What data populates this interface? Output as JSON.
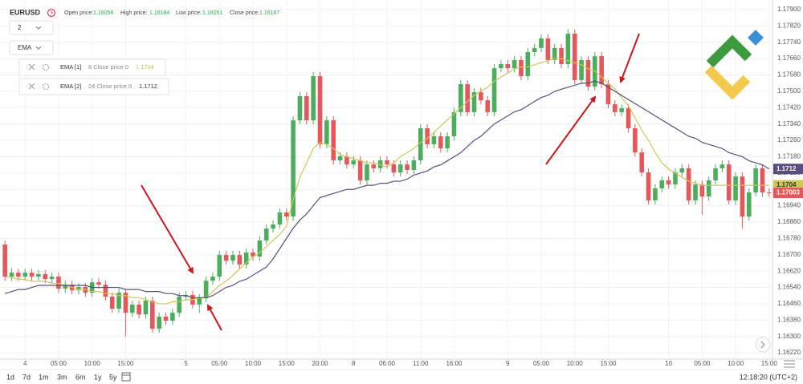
{
  "header": {
    "symbol": "EURUSD",
    "fields": [
      {
        "label": "Open price:",
        "value": 1.16058
      },
      {
        "label": "High price:",
        "value": 1.16184
      },
      {
        "label": "Low price:",
        "value": 1.16051
      },
      {
        "label": "Close price:",
        "value": 1.16167
      }
    ]
  },
  "toolbar": {
    "interval": "2",
    "indicator": "EMA"
  },
  "footer": {
    "ranges": [
      "1d",
      "7d",
      "1m",
      "3m",
      "6m",
      "1y",
      "5y"
    ],
    "clock": "12:18:20 (UTC+2)"
  },
  "chart_data": {
    "type": "candlestick",
    "grid": true,
    "up_color": "#4cae5c",
    "down_color": "#e5575b",
    "ylim": [
      1.16189,
      1.17947
    ],
    "yticks": [
      {
        "value": 1.179,
        "label": "1.17900"
      },
      {
        "value": 1.1782,
        "label": "1.17820"
      },
      {
        "value": 1.1774,
        "label": "1.17740"
      },
      {
        "value": 1.1766,
        "label": "1.17660"
      },
      {
        "value": 1.1758,
        "label": "1.17580"
      },
      {
        "value": 1.175,
        "label": "1.17500"
      },
      {
        "value": 1.1742,
        "label": "1.17420"
      },
      {
        "value": 1.1734,
        "label": "1.17340"
      },
      {
        "value": 1.1726,
        "label": "1.17260"
      },
      {
        "value": 1.1718,
        "label": "1.17180"
      },
      {
        "value": 1.171,
        "label": "1.17100"
      },
      {
        "value": 1.1702,
        "label": "1.17020"
      },
      {
        "value": 1.1694,
        "label": "1.16940"
      },
      {
        "value": 1.1686,
        "label": "1.16860"
      },
      {
        "value": 1.1678,
        "label": "1.16780"
      },
      {
        "value": 1.167,
        "label": "1.16700"
      },
      {
        "value": 1.1662,
        "label": "1.16620"
      },
      {
        "value": 1.1654,
        "label": "1.16540"
      },
      {
        "value": 1.1646,
        "label": "1.16460"
      },
      {
        "value": 1.1638,
        "label": "1.16380"
      },
      {
        "value": 1.163,
        "label": "1.16300"
      },
      {
        "value": 1.1622,
        "label": "1.16220"
      }
    ],
    "categories": [
      null,
      null,
      null,
      "4",
      null,
      null,
      null,
      null,
      "05:00",
      null,
      null,
      null,
      null,
      "10:00",
      null,
      null,
      null,
      null,
      "15:00",
      null,
      null,
      null,
      null,
      null,
      null,
      null,
      null,
      "5",
      null,
      null,
      null,
      null,
      "05:00",
      null,
      null,
      null,
      null,
      "10:00",
      null,
      null,
      null,
      null,
      "15:00",
      null,
      null,
      null,
      null,
      "20:00",
      null,
      null,
      null,
      null,
      "8",
      null,
      null,
      null,
      null,
      "06:00",
      null,
      null,
      null,
      null,
      "11:00",
      null,
      null,
      null,
      null,
      "16:00",
      null,
      null,
      null,
      null,
      null,
      null,
      null,
      "9",
      null,
      null,
      null,
      null,
      "05:00",
      null,
      null,
      null,
      null,
      "10:00",
      null,
      null,
      null,
      null,
      "15:00",
      null,
      null,
      null,
      null,
      null,
      null,
      null,
      null,
      "10",
      null,
      null,
      null,
      null,
      "05:00",
      null,
      null,
      null,
      null,
      "10:00",
      null,
      null,
      null,
      null,
      "15:00"
    ],
    "open": [
      1.1675,
      1.16593,
      1.16612,
      1.16593,
      1.16612,
      1.16593,
      1.16605,
      1.16581,
      1.16593,
      1.16534,
      1.16554,
      1.16526,
      1.16542,
      1.16514,
      1.16565,
      1.16554,
      1.16495,
      1.16436,
      1.16514,
      1.16416,
      1.16456,
      1.16408,
      1.16475,
      1.16338,
      1.16397,
      1.16377,
      1.16416,
      1.16495,
      1.16503,
      1.16456,
      1.16487,
      1.16573,
      1.16593,
      1.16699,
      1.16671,
      1.16699,
      1.16652,
      1.16711,
      1.16691,
      1.1677,
      1.16828,
      1.16848,
      1.16907,
      1.16887,
      1.17358,
      1.17476,
      1.17358,
      1.17574,
      1.17241,
      1.17358,
      1.17162,
      1.17182,
      1.17142,
      1.17162,
      1.17064,
      1.17142,
      1.17123,
      1.17162,
      1.17142,
      1.17103,
      1.17142,
      1.17115,
      1.17162,
      1.17319,
      1.17241,
      1.1728,
      1.17221,
      1.1728,
      1.17398,
      1.17535,
      1.17398,
      1.17496,
      1.17456,
      1.17398,
      1.17613,
      1.17633,
      1.17613,
      1.17653,
      1.17574,
      1.17692,
      1.17712,
      1.17759,
      1.17653,
      1.17712,
      1.17633,
      1.17782,
      1.17555,
      1.17653,
      1.17523,
      1.17672,
      1.17535,
      1.17437,
      1.17398,
      1.17417,
      1.17319,
      1.17201,
      1.17103,
      1.16966,
      1.17025,
      1.17064,
      1.17044,
      1.17103,
      1.17123,
      1.16966,
      1.17044,
      1.16985,
      1.17064,
      1.17123,
      1.17142,
      1.16966,
      1.17083,
      1.16887,
      1.17005,
      1.17123,
      1.17005
    ],
    "high": [
      1.1677,
      1.16632,
      1.16632,
      1.16632,
      1.16632,
      1.16625,
      1.16625,
      1.16613,
      1.16613,
      1.16574,
      1.16574,
      1.16562,
      1.16562,
      1.16585,
      1.16585,
      1.16574,
      1.16515,
      1.16534,
      1.16534,
      1.16476,
      1.16476,
      1.16495,
      1.16495,
      1.16417,
      1.16417,
      1.16436,
      1.16515,
      1.16523,
      1.16523,
      1.16507,
      1.16593,
      1.16613,
      1.16719,
      1.16719,
      1.16719,
      1.16719,
      1.16731,
      1.16731,
      1.1679,
      1.16848,
      1.16868,
      1.16927,
      1.16927,
      1.17378,
      1.17496,
      1.17496,
      1.17594,
      1.17594,
      1.17378,
      1.17378,
      1.17202,
      1.17202,
      1.17182,
      1.17182,
      1.17162,
      1.17162,
      1.17182,
      1.17182,
      1.17162,
      1.17162,
      1.17162,
      1.17182,
      1.17339,
      1.17339,
      1.173,
      1.173,
      1.173,
      1.17418,
      1.17555,
      1.17555,
      1.17516,
      1.17516,
      1.17476,
      1.17633,
      1.17653,
      1.17653,
      1.17673,
      1.17673,
      1.17712,
      1.17732,
      1.17779,
      1.17779,
      1.17732,
      1.17732,
      1.17802,
      1.17802,
      1.17673,
      1.17673,
      1.17692,
      1.17692,
      1.17555,
      1.17457,
      1.17437,
      1.17437,
      1.17339,
      1.17221,
      1.17123,
      1.17045,
      1.17084,
      1.17084,
      1.17123,
      1.17143,
      1.17143,
      1.17064,
      1.17064,
      1.17084,
      1.17143,
      1.17162,
      1.17162,
      1.17103,
      1.17103,
      1.17025,
      1.17143,
      1.17143,
      1.17025
    ],
    "low": [
      1.16573,
      1.16573,
      1.16573,
      1.16573,
      1.16573,
      1.16573,
      1.16561,
      1.16561,
      1.16514,
      1.16514,
      1.16506,
      1.16506,
      1.16494,
      1.16494,
      1.16534,
      1.16475,
      1.16416,
      1.16416,
      1.163,
      1.16396,
      1.16388,
      1.16388,
      1.16318,
      1.16318,
      1.16357,
      1.16357,
      1.16396,
      1.16475,
      1.16436,
      1.16416,
      1.16467,
      1.16553,
      1.16573,
      1.16651,
      1.16651,
      1.16632,
      1.16632,
      1.16671,
      1.16671,
      1.1675,
      1.16808,
      1.16828,
      1.16867,
      1.16867,
      1.17338,
      1.17338,
      1.17338,
      1.17221,
      1.17221,
      1.17142,
      1.17142,
      1.17122,
      1.17122,
      1.17044,
      1.17044,
      1.17103,
      1.17103,
      1.17122,
      1.17083,
      1.17083,
      1.17095,
      1.17095,
      1.17142,
      1.17221,
      1.17221,
      1.17201,
      1.17201,
      1.1726,
      1.17378,
      1.17378,
      1.17378,
      1.17436,
      1.17378,
      1.17378,
      1.17593,
      1.17593,
      1.17593,
      1.17554,
      1.17554,
      1.17672,
      1.17692,
      1.17633,
      1.17633,
      1.17613,
      1.17613,
      1.17535,
      1.17535,
      1.17503,
      1.17503,
      1.17515,
      1.17417,
      1.17378,
      1.17378,
      1.17299,
      1.17181,
      1.17083,
      1.16946,
      1.16946,
      1.17005,
      1.17024,
      1.17024,
      1.17083,
      1.16946,
      1.16946,
      1.16895,
      1.16965,
      1.17044,
      1.17103,
      1.16946,
      1.16946,
      1.16828,
      1.16867,
      1.16985,
      1.16985,
      1.16983
    ],
    "close": [
      1.16593,
      1.16612,
      1.16593,
      1.16612,
      1.16593,
      1.16605,
      1.16581,
      1.16593,
      1.16534,
      1.16554,
      1.16526,
      1.16542,
      1.16514,
      1.16565,
      1.16554,
      1.16495,
      1.16436,
      1.16514,
      1.16416,
      1.16456,
      1.16408,
      1.16475,
      1.16338,
      1.16397,
      1.16377,
      1.16416,
      1.16495,
      1.16503,
      1.16456,
      1.16487,
      1.16573,
      1.16593,
      1.16699,
      1.16671,
      1.16699,
      1.16652,
      1.16711,
      1.16691,
      1.1677,
      1.16828,
      1.16848,
      1.16907,
      1.16887,
      1.17358,
      1.17476,
      1.17358,
      1.17574,
      1.17241,
      1.17358,
      1.17162,
      1.17182,
      1.17142,
      1.17162,
      1.17064,
      1.17142,
      1.17123,
      1.17162,
      1.17142,
      1.17103,
      1.17142,
      1.17115,
      1.17162,
      1.17319,
      1.17241,
      1.1728,
      1.17221,
      1.1728,
      1.17398,
      1.17535,
      1.17398,
      1.17496,
      1.17456,
      1.17398,
      1.17613,
      1.17633,
      1.17613,
      1.17653,
      1.17574,
      1.17692,
      1.17712,
      1.17759,
      1.17653,
      1.17712,
      1.17633,
      1.17782,
      1.17555,
      1.17653,
      1.17523,
      1.17672,
      1.17535,
      1.17437,
      1.17398,
      1.17417,
      1.17319,
      1.17201,
      1.17103,
      1.16966,
      1.17025,
      1.17064,
      1.17044,
      1.17103,
      1.17123,
      1.16966,
      1.17044,
      1.16985,
      1.17064,
      1.17123,
      1.17142,
      1.16966,
      1.17083,
      1.16887,
      1.17005,
      1.17123,
      1.17005,
      1.17003
    ],
    "series": [
      {
        "name": "EMA [1]",
        "params": "8 Close price 0",
        "color": "#cfc65a",
        "values": [
          1.1659,
          1.1659,
          1.1658,
          1.1658,
          1.1657,
          1.1657,
          1.1657,
          1.1656,
          1.1656,
          1.1655,
          1.1654,
          1.1653,
          1.1653,
          1.1652,
          1.1652,
          1.1651,
          1.1651,
          1.165,
          1.165,
          1.1649,
          1.1649,
          1.1648,
          1.1647,
          1.1646,
          1.1646,
          1.1647,
          1.1647,
          1.1648,
          1.1648,
          1.1649,
          1.1649,
          1.1652,
          1.1655,
          1.1657,
          1.166,
          1.1663,
          1.1666,
          1.1669,
          1.1671,
          1.1674,
          1.1677,
          1.168,
          1.1684,
          1.1697,
          1.1708,
          1.1715,
          1.1722,
          1.1725,
          1.1724,
          1.1722,
          1.1719,
          1.1718,
          1.1717,
          1.1716,
          1.1715,
          1.1715,
          1.1714,
          1.1713,
          1.1715,
          1.1718,
          1.172,
          1.1722,
          1.1725,
          1.1727,
          1.173,
          1.1733,
          1.1736,
          1.1739,
          1.1742,
          1.1745,
          1.1748,
          1.175,
          1.1752,
          1.1755,
          1.1757,
          1.1759,
          1.1761,
          1.1762,
          1.1762,
          1.1763,
          1.1764,
          1.1765,
          1.1766,
          1.1766,
          1.1765,
          1.1764,
          1.1763,
          1.1761,
          1.176,
          1.1757,
          1.1754,
          1.1751,
          1.1747,
          1.1743,
          1.1737,
          1.1731,
          1.1726,
          1.172,
          1.1715,
          1.1712,
          1.171,
          1.1708,
          1.1706,
          1.1705,
          1.1704,
          1.1704,
          1.1704,
          1.1704,
          1.1704,
          1.1704,
          1.1704,
          1.1704,
          1.1704,
          1.1704,
          1.1704
        ]
      },
      {
        "name": "EMA [2]",
        "params": "24 Close price 0",
        "color": "#5a4e7e",
        "values": [
          1.1651,
          1.1652,
          1.1653,
          1.1653,
          1.1654,
          1.1655,
          1.1655,
          1.1655,
          1.1655,
          1.1655,
          1.1655,
          1.1655,
          1.1655,
          1.1654,
          1.1654,
          1.1654,
          1.1654,
          1.1654,
          1.1653,
          1.1653,
          1.1653,
          1.1652,
          1.1652,
          1.1652,
          1.1651,
          1.1651,
          1.165,
          1.165,
          1.1649,
          1.1649,
          1.1649,
          1.165,
          1.1652,
          1.1654,
          1.1655,
          1.1657,
          1.1658,
          1.166,
          1.1662,
          1.1664,
          1.1668,
          1.1673,
          1.1678,
          1.1683,
          1.1687,
          1.169,
          1.1694,
          1.1698,
          1.1699,
          1.17,
          1.1701,
          1.1702,
          1.1702,
          1.1703,
          1.1704,
          1.1704,
          1.1705,
          1.1705,
          1.1706,
          1.1706,
          1.1707,
          1.1709,
          1.171,
          1.1711,
          1.1713,
          1.1714,
          1.1716,
          1.1718,
          1.172,
          1.1723,
          1.1726,
          1.1728,
          1.1731,
          1.1734,
          1.1736,
          1.1738,
          1.174,
          1.1741,
          1.1743,
          1.1745,
          1.1747,
          1.1748,
          1.175,
          1.1751,
          1.1752,
          1.1753,
          1.1754,
          1.1754,
          1.1755,
          1.1754,
          1.1752,
          1.175,
          1.1748,
          1.1746,
          1.1744,
          1.1742,
          1.174,
          1.1738,
          1.1736,
          1.1734,
          1.1732,
          1.173,
          1.1728,
          1.1727,
          1.1725,
          1.1724,
          1.1723,
          1.1722,
          1.172,
          1.1719,
          1.1718,
          1.1716,
          1.1715,
          1.1714,
          1.1712
        ]
      }
    ]
  }
}
